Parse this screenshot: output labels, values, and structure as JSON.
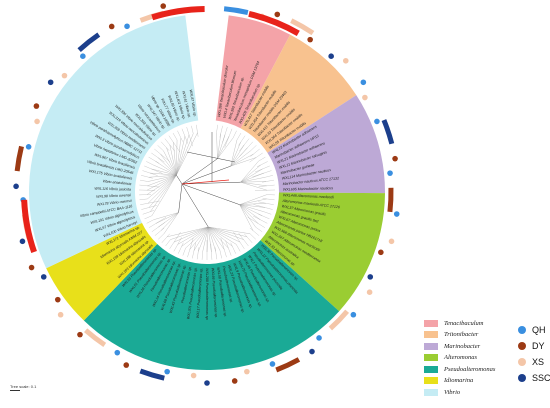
{
  "clades": [
    {
      "name": "Tenacibaculum",
      "color": "#f4a3a8",
      "leaves": [
        "WXL399 Tenacibaculum discolor",
        "WXL4 Tenacibaculum litoreum",
        "WXL390 Tenacibaculum sp.",
        "Tenacibaculum mesophilum DSM 13764",
        "WXL409 Tenacibaculum sp."
      ]
    },
    {
      "name": "Tritonibacter",
      "color": "#f8c28f",
      "leaves": [
        "WXL417 Tritonibacter mobilis",
        "WXL404 Tritonibacter mobilis",
        "Tritonibacter mobilis DSM 23403",
        "WXL411 Tritonibacter mobilis",
        "WXL33 Tritonibacter mobilis",
        "WXL364 Tritonibacter mobilis",
        "WXL55 Tritonibacter mobilis"
      ]
    },
    {
      "name": "Marinobacter",
      "color": "#bda9d6",
      "leaves": [
        "WXL22 Marinobacter adhaerens",
        "Marinobacter adhaerens HP15",
        "WXL21 Marinobacter adhaerens",
        "WXL11 Marinobacter salsuginis",
        "Marinobacter guineae",
        "WXL114 Marinobacter nauticus",
        "Marinobacter nauticus ATCC 27132",
        "WXL695 Marinobacter nauticus"
      ]
    },
    {
      "name": "Alteromonas",
      "color": "#9acd32",
      "leaves": [
        "WXL448 Alteromonas macleodii",
        "Alteromonas macleodii ATCC 27126",
        "WXL37 Alteromonas gracilis",
        "Alteromonas gracilis 9a2",
        "WXL67 Alteromonas portus",
        "Alteromonas portus HB161718",
        "WXL568 Alteromonas macleodii",
        "WXL347 Alteromonas mediterranea",
        "Alteromonas australica",
        "WXL33 Alteromonas sp."
      ]
    },
    {
      "name": "Pseudoalteromonas",
      "color": "#1aaa96",
      "leaves": [
        "WXL30 Pseudoalteromonas sp.",
        "WXL12 Pseudoalteromonas piscicida",
        "Pseudoalteromonas piscicida",
        "WXL1 Pseudoalteromonas sp.",
        "WXL45 Pseudoalteromonas sp.",
        "WXL79 Pseudoalteromonas sp.",
        "WXL9 Pseudoalteromonas sp.",
        "WXL23 Pseudoalteromonas sp.",
        "Pseudoalteromonas sp.",
        "WXL58 Pseudoalteromonas sp.",
        "WXL66 Pseudoalteromonas sp.",
        "WXL200 Pseudoalteromonas sp.",
        "WXL17 Pseudoalteromonas sp.",
        "WXL301 Pseudoalteromonas sp.",
        "Pseudoalteromonas sp.",
        "WXL43 Pseudoalteromonas sp.",
        "WXL68 Pseudoalteromonas sp.",
        "WXL14 Pseudoalteromonas sp.",
        "Pseudoalteromonas sp.",
        "WXL28 Pseudoalteromonas sp.",
        "WXL51 Pseudoalteromonas sp.",
        "WXL91 Pseudoalteromonas sp."
      ]
    },
    {
      "name": "Idiomarina",
      "color": "#e8e01a",
      "leaves": [
        "WXL183 Idiomarina abyssalis",
        "WXL188 Idiomarina sp.",
        "WXL199 Idiomarina abyssalis",
        "Idiomarina abyssalis KMM 227",
        "WXL171 Idiomarina sp."
      ]
    },
    {
      "name": "Vibrio",
      "color": "#c5ecf4",
      "leaves": [
        "WXL100 Vibrio harveyi",
        "WXL57 Vibrio alginolyticus",
        "WXL191 Vibrio alginolyticus",
        "Vibrio campbellii ATCC BAA-1116",
        "WXL78 Vibrio owensii",
        "WXL98 Vibrio owensii",
        "WXL116 Vibrio jasicida",
        "Vibrio anatoliensis",
        "WXL175 Vibrio anatoliensis",
        "Vibrio brasiliensis LMG 20546",
        "WXL967 Vibrio brasiliensis",
        "Vibrio hepatarius LMG 20362",
        "WXL3 Vibrio parahaemolyticus",
        "Vibrio parahaemolyticus NBRC 12711",
        "WXL309 Vibrio mediterranei",
        "WXL319 Vibrio neocaledonicus",
        "WXL336 Vibrio neocaledonicus",
        "WXL393 Vibrio sp.",
        "Vibrio neocaledonicus",
        "WXL347 Vibrio sp.",
        "Vibrio sp. DSM 19586",
        "WXL77 Vibrio sp.",
        "WXL49 Vibrio sp.",
        "WXL401 Vibrio sp.",
        "WXL61 Vibrio sp.",
        "WXL87 Vibrio sp."
      ]
    }
  ],
  "sites": [
    {
      "name": "QH",
      "color": "#3a8fe0"
    },
    {
      "name": "DY",
      "color": "#9c3a14"
    },
    {
      "name": "XS",
      "color": "#f4c6a8"
    },
    {
      "name": "SSCS",
      "color": "#1c3f8c"
    }
  ],
  "highlight": {
    "color": "#e8231a"
  },
  "scale_label": "Tree scale: 0.1"
}
